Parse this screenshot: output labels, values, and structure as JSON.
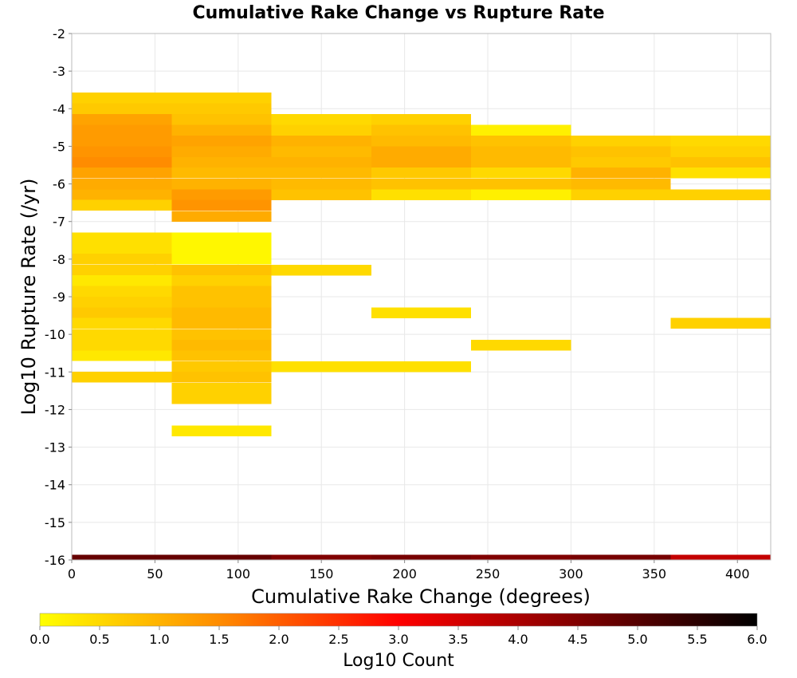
{
  "chart_data": {
    "type": "heatmap",
    "title": "Cumulative Rake Change vs Rupture Rate",
    "xlabel": "Cumulative Rake Change (degrees)",
    "ylabel": "Log10 Rupture Rate (/yr)",
    "xlim": [
      0,
      420
    ],
    "ylim": [
      -16,
      -2
    ],
    "x_ticks": [
      0,
      50,
      100,
      150,
      200,
      250,
      300,
      350,
      400
    ],
    "y_ticks": [
      -2,
      -3,
      -4,
      -5,
      -6,
      -7,
      -8,
      -9,
      -10,
      -11,
      -12,
      -13,
      -14,
      -15,
      -16
    ],
    "x_bin_edges": [
      0,
      60,
      120,
      180,
      240,
      300,
      360,
      420
    ],
    "y_bin_size": 0.2857,
    "grid": true,
    "colorbar": {
      "label": "Log10 Count",
      "range": [
        0.0,
        6.0
      ],
      "ticks": [
        "0.0",
        "0.5",
        "1.0",
        "1.5",
        "2.0",
        "2.5",
        "3.0",
        "3.5",
        "4.0",
        "4.5",
        "5.0",
        "5.5",
        "6.0"
      ],
      "colors": [
        "#ffff00",
        "#ff8c00",
        "#ff0000",
        "#800000",
        "#000000"
      ],
      "position": "bottom"
    },
    "columns": [
      {
        "x_range": [
          0,
          60
        ],
        "cells": [
          {
            "y": -3.71,
            "value": 0.6
          },
          {
            "y": -4.0,
            "value": 0.7
          },
          {
            "y": -4.29,
            "value": 1.2
          },
          {
            "y": -4.57,
            "value": 1.3
          },
          {
            "y": -4.86,
            "value": 1.3
          },
          {
            "y": -5.14,
            "value": 1.4
          },
          {
            "y": -5.43,
            "value": 1.5
          },
          {
            "y": -5.71,
            "value": 1.2
          },
          {
            "y": -6.0,
            "value": 1.1
          },
          {
            "y": -6.29,
            "value": 1.0
          },
          {
            "y": -6.57,
            "value": 0.6
          },
          {
            "y": -7.43,
            "value": 0.4
          },
          {
            "y": -7.71,
            "value": 0.4
          },
          {
            "y": -8.0,
            "value": 0.6
          },
          {
            "y": -8.29,
            "value": 0.6
          },
          {
            "y": -8.57,
            "value": 0.3
          },
          {
            "y": -8.86,
            "value": 0.5
          },
          {
            "y": -9.14,
            "value": 0.6
          },
          {
            "y": -9.43,
            "value": 0.7
          },
          {
            "y": -9.71,
            "value": 0.5
          },
          {
            "y": -10.0,
            "value": 0.5
          },
          {
            "y": -10.29,
            "value": 0.5
          },
          {
            "y": -10.57,
            "value": 0.3
          },
          {
            "y": -11.14,
            "value": 0.6
          }
        ]
      },
      {
        "x_range": [
          60,
          120
        ],
        "cells": [
          {
            "y": -3.71,
            "value": 0.6
          },
          {
            "y": -4.0,
            "value": 0.7
          },
          {
            "y": -4.29,
            "value": 0.8
          },
          {
            "y": -4.57,
            "value": 1.0
          },
          {
            "y": -4.86,
            "value": 1.2
          },
          {
            "y": -5.14,
            "value": 1.1
          },
          {
            "y": -5.43,
            "value": 1.0
          },
          {
            "y": -5.71,
            "value": 0.9
          },
          {
            "y": -6.0,
            "value": 1.0
          },
          {
            "y": -6.29,
            "value": 1.3
          },
          {
            "y": -6.57,
            "value": 1.4
          },
          {
            "y": -6.86,
            "value": 1.1
          },
          {
            "y": -7.43,
            "value": 0.1
          },
          {
            "y": -7.71,
            "value": 0.1
          },
          {
            "y": -8.0,
            "value": 0.1
          },
          {
            "y": -8.29,
            "value": 0.8
          },
          {
            "y": -8.57,
            "value": 0.6
          },
          {
            "y": -8.86,
            "value": 0.8
          },
          {
            "y": -9.14,
            "value": 0.8
          },
          {
            "y": -9.43,
            "value": 0.9
          },
          {
            "y": -9.71,
            "value": 0.9
          },
          {
            "y": -10.0,
            "value": 0.8
          },
          {
            "y": -10.29,
            "value": 0.9
          },
          {
            "y": -10.57,
            "value": 0.8
          },
          {
            "y": -10.86,
            "value": 0.7
          },
          {
            "y": -11.14,
            "value": 0.8
          },
          {
            "y": -11.43,
            "value": 0.6
          },
          {
            "y": -11.71,
            "value": 0.6
          },
          {
            "y": -12.57,
            "value": 0.3
          }
        ]
      },
      {
        "x_range": [
          120,
          180
        ],
        "cells": [
          {
            "y": -4.29,
            "value": 0.5
          },
          {
            "y": -4.57,
            "value": 0.6
          },
          {
            "y": -4.86,
            "value": 1.0
          },
          {
            "y": -5.14,
            "value": 0.9
          },
          {
            "y": -5.43,
            "value": 1.0
          },
          {
            "y": -5.71,
            "value": 0.9
          },
          {
            "y": -6.0,
            "value": 0.9
          },
          {
            "y": -6.29,
            "value": 0.8
          },
          {
            "y": -8.29,
            "value": 0.5
          },
          {
            "y": -10.86,
            "value": 0.4
          }
        ]
      },
      {
        "x_range": [
          180,
          240
        ],
        "cells": [
          {
            "y": -4.29,
            "value": 0.6
          },
          {
            "y": -4.57,
            "value": 0.8
          },
          {
            "y": -4.86,
            "value": 0.9
          },
          {
            "y": -5.14,
            "value": 1.1
          },
          {
            "y": -5.43,
            "value": 1.1
          },
          {
            "y": -5.71,
            "value": 0.7
          },
          {
            "y": -6.0,
            "value": 0.8
          },
          {
            "y": -6.29,
            "value": 0.4
          },
          {
            "y": -9.43,
            "value": 0.4
          },
          {
            "y": -10.86,
            "value": 0.4
          }
        ]
      },
      {
        "x_range": [
          240,
          300
        ],
        "cells": [
          {
            "y": -4.57,
            "value": 0.2
          },
          {
            "y": -4.86,
            "value": 0.8
          },
          {
            "y": -5.14,
            "value": 0.9
          },
          {
            "y": -5.43,
            "value": 0.9
          },
          {
            "y": -5.71,
            "value": 0.5
          },
          {
            "y": -6.0,
            "value": 0.8
          },
          {
            "y": -6.29,
            "value": 0.2
          },
          {
            "y": -10.29,
            "value": 0.5
          }
        ]
      },
      {
        "x_range": [
          300,
          360
        ],
        "cells": [
          {
            "y": -4.86,
            "value": 0.6
          },
          {
            "y": -5.14,
            "value": 0.8
          },
          {
            "y": -5.43,
            "value": 0.7
          },
          {
            "y": -5.71,
            "value": 1.0
          },
          {
            "y": -6.0,
            "value": 0.9
          },
          {
            "y": -6.29,
            "value": 0.6
          }
        ]
      },
      {
        "x_range": [
          360,
          420
        ],
        "cells": [
          {
            "y": -4.86,
            "value": 0.5
          },
          {
            "y": -5.14,
            "value": 0.6
          },
          {
            "y": -5.43,
            "value": 0.8
          },
          {
            "y": -5.71,
            "value": 0.4
          },
          {
            "y": -6.29,
            "value": 0.6
          },
          {
            "y": -9.71,
            "value": 0.6
          }
        ]
      }
    ],
    "bottom_row": {
      "y": -16.0,
      "values": [
        4.8,
        4.8,
        4.5,
        4.6,
        4.5,
        4.6,
        3.7
      ]
    }
  }
}
